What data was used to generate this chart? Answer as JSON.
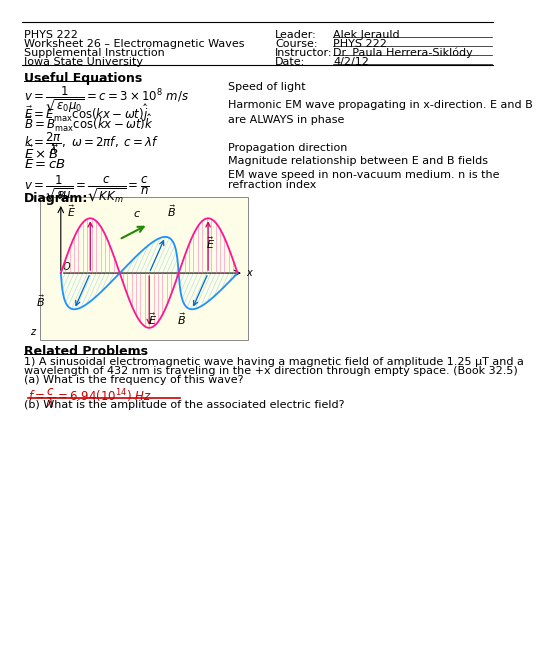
{
  "bg_color": "#ffffff",
  "header_left": [
    "PHYS 222",
    "Worksheet 26 – Electromagnetic Waves",
    "Supplemental Instruction",
    "Iowa State University"
  ],
  "header_right_labels": [
    "Leader:",
    "Course:",
    "Instructor:",
    "Date:"
  ],
  "header_right_values": [
    "Alek Jerauld",
    "PHYS 222",
    "Dr. Paula Herrera-Siklódy",
    "4/2/12"
  ],
  "section_useful_eq": "Useful Equations",
  "eq1_right": "Speed of light",
  "eq2_right1": "Harmonic EM wave propagating in x-direction. E and B",
  "eq2_right2": "are ALWAYS in phase",
  "eq4_right": "Propagation direction",
  "eq5_right": "Magnitude relationship between E and B fields",
  "eq6_right1": "EM wave speed in non-vacuum medium. n is the",
  "eq6_right2": "refraction index",
  "diagram_label": "Diagram:",
  "diagram_bg": "#fefee8",
  "related_problems_title": "Related Problems",
  "prob1_text1": "1) A sinusoidal electromagnetic wave having a magnetic field of amplitude 1.25 μT and a",
  "prob1_text2": "wavelength of 432 nm is traveling in the +x direction through empty space. (Book 32.5)",
  "prob1_text3": "(a) What is the frequency of this wave?",
  "prob1b_text": "(b) What is the amplitude of the associated electric field?",
  "font_size_small": 7.5,
  "font_size_body": 8.5,
  "font_size_eq": 8.5,
  "answer_color": "#cc0000",
  "line_color": "#333333"
}
